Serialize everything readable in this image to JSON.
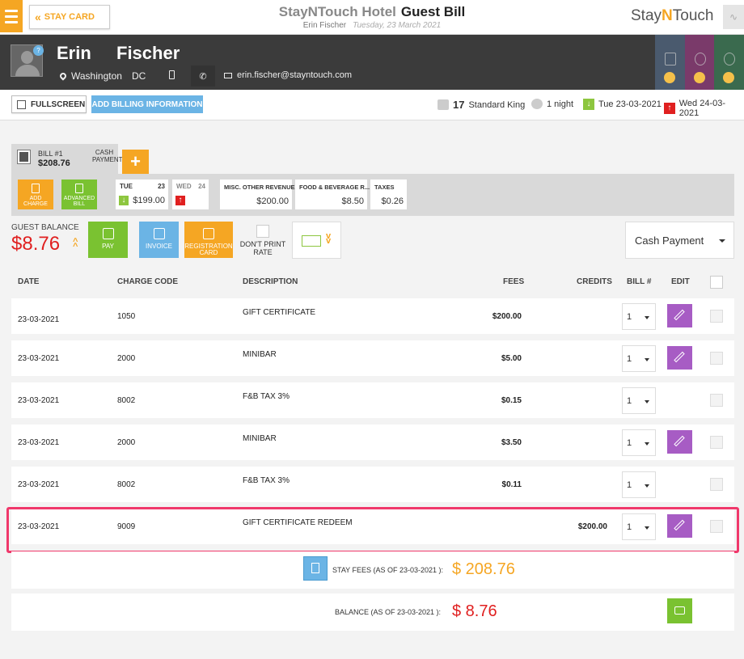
{
  "header": {
    "stay_card_label": "STAY CARD",
    "hotel_name": "StayNTouch Hotel",
    "page_title": "Guest Bill",
    "guest_name": "Erin Fischer",
    "date": "Tuesday, 23 March 2021",
    "brand": {
      "pre": "Stay",
      "mid": "N",
      "post": "Touch"
    }
  },
  "guest": {
    "badge": "?",
    "first_name": "Erin",
    "last_name": "Fischer",
    "city": "Washington",
    "state": "DC",
    "email": "erin.fischer@stayntouch.com"
  },
  "tiles": [
    {
      "color": "#4a5a6e"
    },
    {
      "color": "#7a3a6a"
    },
    {
      "color": "#3a6a4e"
    }
  ],
  "toolbar": {
    "fullscreen_label": "FULLSCREEN",
    "add_billing_label": "ADD BILLING INFORMATION",
    "room_number": "17",
    "room_type": "Standard King",
    "nights": "1 night",
    "arrival": "Tue 23-03-2021",
    "departure": "Wed 24-03-2021"
  },
  "bill": {
    "number": "BILL #1",
    "amount": "$208.76",
    "type": "CASH PAYMENT",
    "add_charge": "ADD CHARGE",
    "advanced_bill": "ADVANCED BILL",
    "dates": [
      {
        "day": "TUE",
        "date": "23",
        "amount": "$199.00"
      },
      {
        "day": "WED",
        "date": "24",
        "amount": ""
      }
    ],
    "summaries": [
      {
        "label": "MISC. OTHER REVENUE",
        "value": "$200.00"
      },
      {
        "label": "FOOD & BEVERAGE R...",
        "value": "$8.50"
      },
      {
        "label": "TAXES",
        "value": "$0.26"
      }
    ]
  },
  "balance": {
    "label": "GUEST BALANCE",
    "value": "$8.76",
    "pay_label": "PAY",
    "invoice_label": "INVOICE",
    "registration_label": "REGISTRATION CARD",
    "dont_print_label": "DON'T PRINT RATE",
    "payment_method": "Cash Payment"
  },
  "table": {
    "headers": {
      "date": "DATE",
      "charge_code": "CHARGE CODE",
      "description": "DESCRIPTION",
      "fees": "FEES",
      "credits": "CREDITS",
      "bill": "BILL #",
      "edit": "EDIT"
    },
    "rows": [
      {
        "date": "23-03-2021",
        "code": "1050",
        "description": "GIFT CERTIFICATE",
        "fees": "$200.00",
        "credits": "",
        "bill": "1"
      },
      {
        "date": "23-03-2021",
        "code": "2000",
        "description": "MINIBAR",
        "fees": "$5.00",
        "credits": "",
        "bill": "1"
      },
      {
        "date": "23-03-2021",
        "code": "8002",
        "description": "F&B TAX 3%",
        "fees": "$0.15",
        "credits": "",
        "bill": "1"
      },
      {
        "date": "23-03-2021",
        "code": "2000",
        "description": "MINIBAR",
        "fees": "$3.50",
        "credits": "",
        "bill": "1"
      },
      {
        "date": "23-03-2021",
        "code": "8002",
        "description": "F&B TAX 3%",
        "fees": "$0.11",
        "credits": "",
        "bill": "1"
      },
      {
        "date": "23-03-2021",
        "code": "9009",
        "description": "GIFT CERTIFICATE REDEEM",
        "fees": "",
        "credits": "$200.00",
        "bill": "1"
      }
    ]
  },
  "totals": {
    "stay_fees_label": "STAY FEES (AS OF 23-03-2021 ):",
    "stay_fees_value": "$ 208.76",
    "balance_label": "BALANCE (AS OF 23-03-2021 ):",
    "balance_value": "$ 8.76"
  },
  "colors": {
    "accent": "#f5a623",
    "negative": "#e02020",
    "edit": "#a75cc4",
    "highlight": "#f0386b"
  }
}
